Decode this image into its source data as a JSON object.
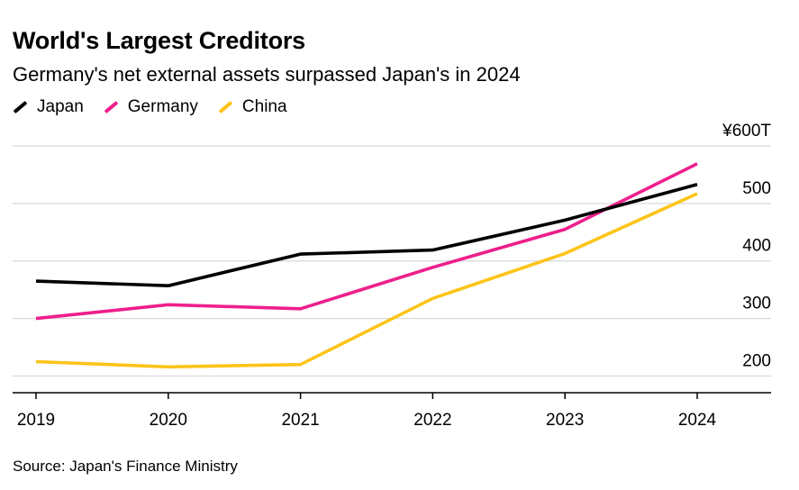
{
  "title": "World's Largest Creditors",
  "subtitle": "Germany's net external assets surpassed Japan's in 2024",
  "source": "Source: Japan's Finance Ministry",
  "colors": {
    "Japan": "#000000",
    "Germany": "#ee1f8c",
    "China": "#fcc419",
    "grid": "#d9d9d9",
    "axis": "#000000"
  },
  "chart_data": {
    "type": "line",
    "x": [
      "2019",
      "2020",
      "2021",
      "2022",
      "2023",
      "2024"
    ],
    "series": [
      {
        "name": "Japan",
        "values": [
          365,
          357,
          412,
          419,
          471,
          533
        ]
      },
      {
        "name": "Germany",
        "values": [
          300,
          324,
          317,
          389,
          455,
          569
        ]
      },
      {
        "name": "China",
        "values": [
          225,
          216,
          220,
          335,
          413,
          517
        ]
      }
    ],
    "ytick_labels": [
      "200",
      "300",
      "400",
      "500",
      "¥600T"
    ],
    "yticks": [
      200,
      300,
      400,
      500,
      600
    ],
    "ylim": [
      171,
      600
    ],
    "grid": true,
    "legend": "top-left",
    "xlabel": "",
    "ylabel": ""
  }
}
